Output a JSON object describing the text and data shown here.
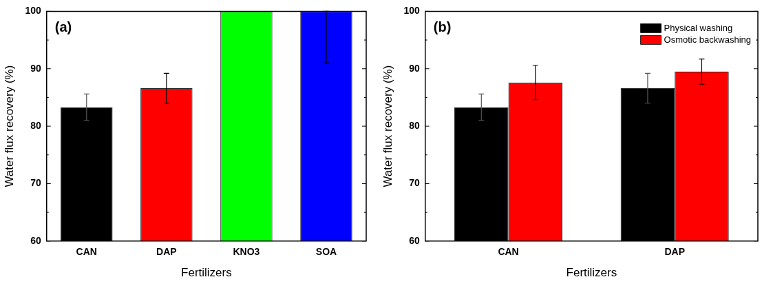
{
  "chart_data": [
    {
      "type": "bar",
      "xlabel": "Fertilizers",
      "ylabel": "Water flux recovery (%)",
      "annotations": [
        "(a)"
      ],
      "categories": [
        "CAN",
        "DAP",
        "KNO3",
        "SOA"
      ],
      "values": [
        83.3,
        86.6,
        100,
        100
      ],
      "colors": [
        "#000000",
        "#ff0000",
        "#00ff00",
        "#0000ff"
      ],
      "errors": [
        2.3,
        2.6,
        null,
        [
          91,
          100
        ]
      ],
      "ylim": [
        60,
        100
      ],
      "yticks": [
        60,
        {
          "value": 65,
          "label": null
        },
        70,
        {
          "value": 75,
          "label": null
        },
        80,
        {
          "value": 85,
          "label": null
        },
        90,
        {
          "value": 95,
          "label": null
        },
        100
      ],
      "grid": false,
      "legend": false
    },
    {
      "type": "bar",
      "xlabel": "Fertilizers",
      "ylabel": "Water flux recovery (%)",
      "annotations": [
        "(b)"
      ],
      "categories": [
        "CAN",
        "DAP"
      ],
      "series": [
        {
          "name": "Physical washing",
          "color": "#000000",
          "values": [
            83.3,
            86.6
          ],
          "errors": [
            2.3,
            2.6
          ]
        },
        {
          "name": "Osmotic backwashing",
          "color": "#ff0000",
          "values": [
            87.6,
            89.5
          ],
          "errors": [
            3,
            2.2
          ]
        }
      ],
      "ylim": [
        60,
        100
      ],
      "yticks": [
        60,
        {
          "value": 65,
          "label": null
        },
        70,
        {
          "value": 75,
          "label": null
        },
        80,
        {
          "value": 85,
          "label": null
        },
        90,
        {
          "value": 95,
          "label": null
        },
        100
      ],
      "grid": false,
      "legend": "top right"
    }
  ]
}
